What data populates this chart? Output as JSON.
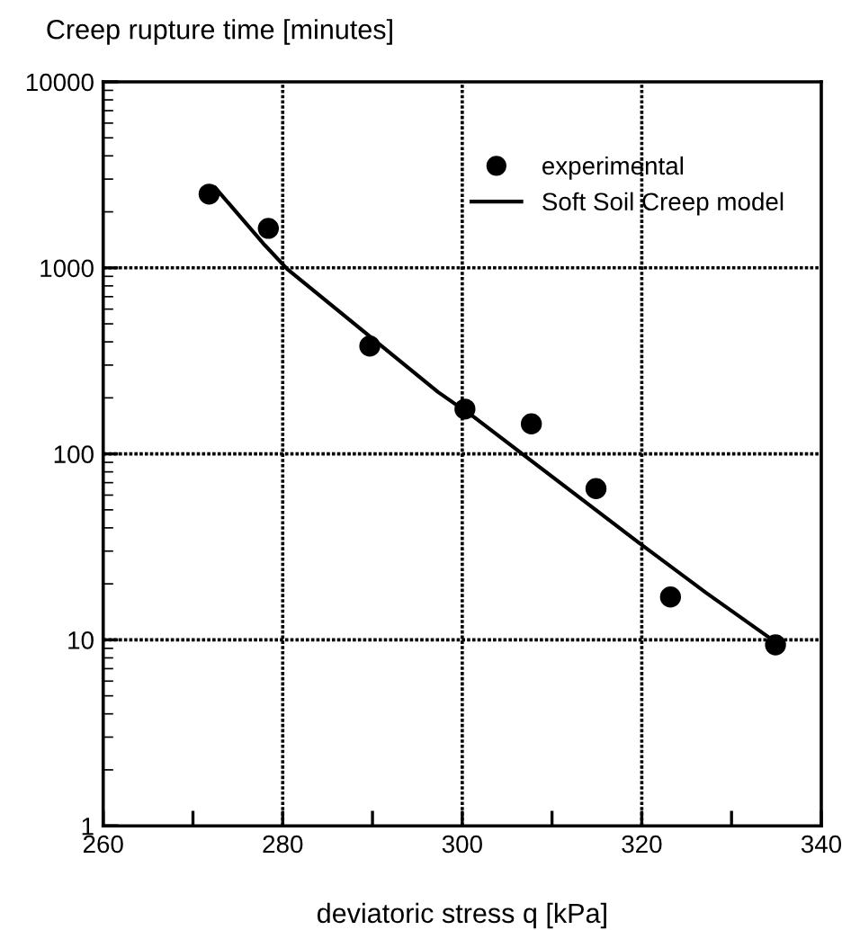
{
  "chart_data": {
    "type": "scatter",
    "xlabel": "deviatoric stress q [kPa]",
    "ylabel": "Creep rupture time [minutes]",
    "series": [
      {
        "name": "experimental",
        "color": "#000000",
        "marker": "circle",
        "x": [
          271.8,
          278.4,
          289.7,
          300.3,
          307.7,
          314.9,
          323.2,
          334.9
        ],
        "values": [
          2490,
          1630,
          380,
          174,
          145,
          65,
          17,
          9.4
        ]
      },
      {
        "name": "Soft Soil Creep model",
        "type": "line",
        "color": "#000000",
        "marker": "none",
        "line_style": "solid",
        "x": [
          272.5,
          278.0,
          280.5,
          297.3,
          301.2,
          319.6,
          327.1,
          334.8
        ],
        "values": [
          2690,
          1325,
          985,
          215,
          159,
          33.5,
          18,
          9.8
        ]
      }
    ],
    "log": "y",
    "xlim": [
      260,
      340
    ],
    "ylim": [
      1,
      10000
    ],
    "xticks": [
      260,
      {
        "value": 270,
        "label": null
      },
      280,
      {
        "value": 290,
        "label": null
      },
      300,
      {
        "value": 310,
        "label": null
      },
      320,
      {
        "value": 330,
        "label": null
      },
      340
    ],
    "yticks": [
      1,
      10,
      100,
      1000,
      10000
    ],
    "grid": true,
    "legend": "top right"
  }
}
